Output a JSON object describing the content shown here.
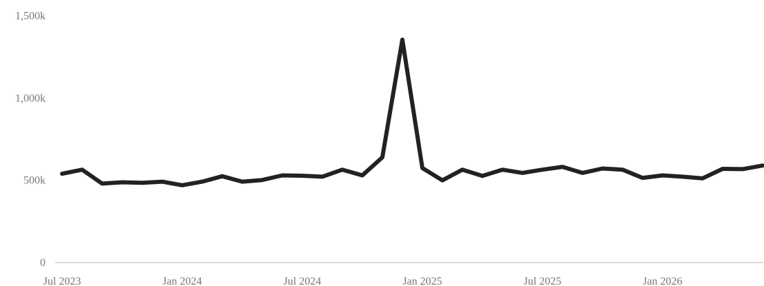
{
  "chart_data": {
    "type": "line",
    "title": "",
    "xlabel": "",
    "ylabel": "",
    "x": [
      "2023-07",
      "2023-08",
      "2023-09",
      "2023-10",
      "2023-11",
      "2023-12",
      "2024-01",
      "2024-02",
      "2024-03",
      "2024-04",
      "2024-05",
      "2024-06",
      "2024-07",
      "2024-08",
      "2024-09",
      "2024-10",
      "2024-11",
      "2024-12",
      "2025-01",
      "2025-02",
      "2025-03",
      "2025-04",
      "2025-05",
      "2025-06",
      "2025-07",
      "2025-08",
      "2025-09",
      "2025-10",
      "2025-11",
      "2025-12",
      "2026-01",
      "2026-02",
      "2026-03",
      "2026-04",
      "2026-05",
      "2026-06"
    ],
    "series": [
      {
        "values": [
          540,
          565,
          480,
          488,
          485,
          492,
          470,
          492,
          525,
          492,
          502,
          530,
          528,
          522,
          565,
          530,
          640,
          1355,
          575,
          500,
          565,
          527,
          565,
          545,
          565,
          582,
          545,
          572,
          565,
          515,
          530,
          522,
          512,
          570,
          568,
          590
        ]
      }
    ],
    "x_ticks": [
      {
        "label": "Jul 2023",
        "x": "2023-07"
      },
      {
        "label": "Jan 2024",
        "x": "2024-01"
      },
      {
        "label": "Jul 2024",
        "x": "2024-07"
      },
      {
        "label": "Jan 2025",
        "x": "2025-01"
      },
      {
        "label": "Jul 2025",
        "x": "2025-07"
      },
      {
        "label": "Jan 2026",
        "x": "2026-01"
      }
    ],
    "y_ticks": [
      {
        "label": "0",
        "value": 0
      },
      {
        "label": "500k",
        "value": 500
      },
      {
        "label": "1,000k",
        "value": 1000
      },
      {
        "label": "1,500k",
        "value": 1500
      }
    ],
    "ylim": [
      0,
      1500
    ],
    "grid": false,
    "legend": "none",
    "colors": {
      "line": "#222222",
      "axis": "#bbbbbb",
      "tick_text": "#777777"
    }
  }
}
